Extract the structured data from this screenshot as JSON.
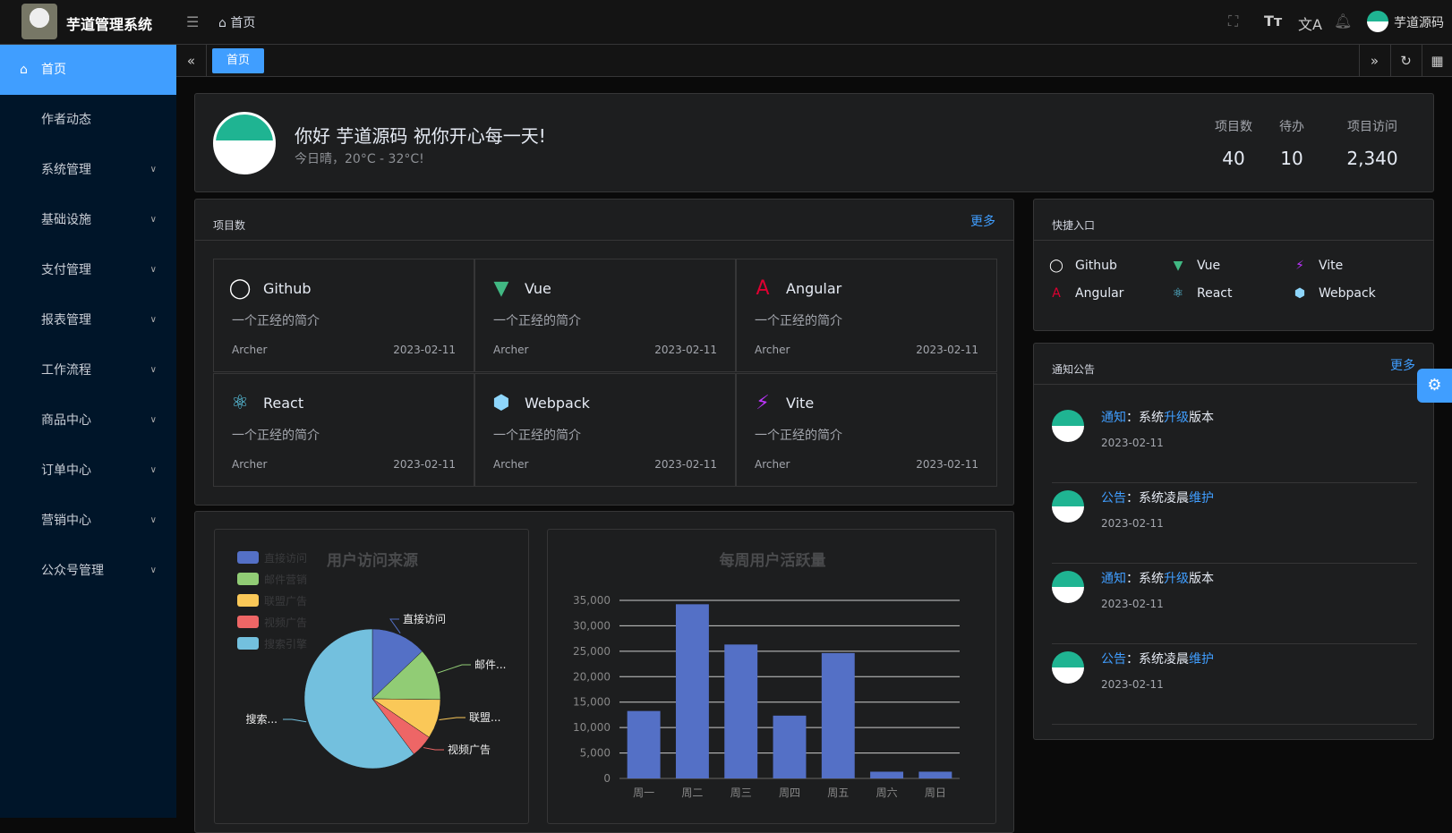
{
  "app": {
    "title": "芋道管理系统",
    "breadcrumb": "首页",
    "user": "芋道源码"
  },
  "sidebar": {
    "items": [
      {
        "label": "首页",
        "active": true
      },
      {
        "label": "作者动态"
      },
      {
        "label": "系统管理",
        "sub": true
      },
      {
        "label": "基础设施",
        "sub": true
      },
      {
        "label": "支付管理",
        "sub": true
      },
      {
        "label": "报表管理",
        "sub": true
      },
      {
        "label": "工作流程",
        "sub": true
      },
      {
        "label": "商品中心",
        "sub": true
      },
      {
        "label": "订单中心",
        "sub": true
      },
      {
        "label": "营销中心",
        "sub": true
      },
      {
        "label": "公众号管理",
        "sub": true
      }
    ]
  },
  "tabs": [
    {
      "label": "首页"
    }
  ],
  "welcome": {
    "greeting": "你好 芋道源码 祝你开心每一天!",
    "weather": "今日晴，20°C - 32°C!",
    "stats": [
      {
        "label": "项目数",
        "value": "40"
      },
      {
        "label": "待办",
        "value": "10"
      },
      {
        "label": "项目访问",
        "value": "2,340"
      }
    ]
  },
  "projects": {
    "title": "项目数",
    "more": "更多",
    "items": [
      {
        "name": "Github",
        "icon": "github-icon",
        "desc": "一个正经的简介",
        "author": "Archer",
        "date": "2023-02-11"
      },
      {
        "name": "Vue",
        "icon": "vue-icon",
        "desc": "一个正经的简介",
        "author": "Archer",
        "date": "2023-02-11"
      },
      {
        "name": "Angular",
        "icon": "angular-icon",
        "desc": "一个正经的简介",
        "author": "Archer",
        "date": "2023-02-11"
      },
      {
        "name": "React",
        "icon": "react-icon",
        "desc": "一个正经的简介",
        "author": "Archer",
        "date": "2023-02-11"
      },
      {
        "name": "Webpack",
        "icon": "webpack-icon",
        "desc": "一个正经的简介",
        "author": "Archer",
        "date": "2023-02-11"
      },
      {
        "name": "Vite",
        "icon": "vite-icon",
        "desc": "一个正经的简介",
        "author": "Archer",
        "date": "2023-02-11"
      }
    ]
  },
  "quick": {
    "title": "快捷入口",
    "items": [
      {
        "name": "Github"
      },
      {
        "name": "Vue"
      },
      {
        "name": "Vite"
      },
      {
        "name": "Angular"
      },
      {
        "name": "React"
      },
      {
        "name": "Webpack"
      }
    ]
  },
  "notices": {
    "title": "通知公告",
    "more": "更多",
    "items": [
      {
        "type": "通知",
        "sep": "：",
        "pre": "系统",
        "hl": "升级",
        "post": "版本",
        "date": "2023-02-11"
      },
      {
        "type": "公告",
        "sep": "：",
        "pre": "系统凌晨",
        "hl": "维护",
        "post": "",
        "date": "2023-02-11"
      },
      {
        "type": "通知",
        "sep": "：",
        "pre": "系统",
        "hl": "升级",
        "post": "版本",
        "date": "2023-02-11"
      },
      {
        "type": "公告",
        "sep": "：",
        "pre": "系统凌晨",
        "hl": "维护",
        "post": "",
        "date": "2023-02-11"
      }
    ]
  },
  "chart_data": [
    {
      "type": "pie",
      "title": "用户访问来源",
      "legend_position": "top-left",
      "categories": [
        "直接访问",
        "邮件营销",
        "联盟广告",
        "视频广告",
        "搜索引擎"
      ],
      "values": [
        335,
        310,
        234,
        135,
        1548
      ],
      "labels": [
        "直接访问",
        "邮件...",
        "联盟...",
        "视频广告",
        "搜索..."
      ],
      "colors": [
        "#5470c6",
        "#91cc75",
        "#fac858",
        "#ee6666",
        "#73c0de"
      ]
    },
    {
      "type": "bar",
      "title": "每周用户活跃量",
      "categories": [
        "周一",
        "周二",
        "周三",
        "周四",
        "周五",
        "周六",
        "周日"
      ],
      "values": [
        13253,
        34235,
        26321,
        12340,
        24643,
        1322,
        1324
      ],
      "ylim": [
        0,
        35000
      ],
      "yticks": [
        "0",
        "5,000",
        "10,000",
        "15,000",
        "20,000",
        "25,000",
        "30,000",
        "35,000"
      ],
      "grid": true,
      "color": "#5470c6"
    }
  ]
}
